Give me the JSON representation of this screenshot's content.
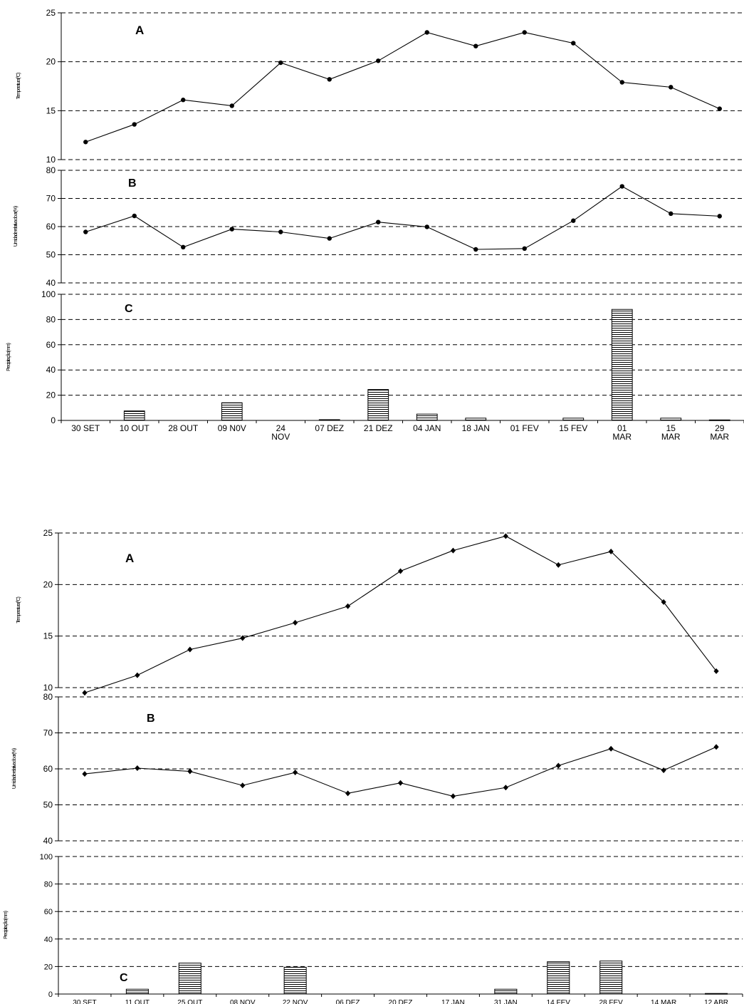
{
  "chart_data": [
    {
      "type": "line",
      "figure": 1,
      "panel_letter": "A",
      "ylabel": "Temperatura(ºC)",
      "ylim": [
        10,
        25
      ],
      "yticks": [
        10,
        15,
        20,
        25
      ],
      "grid": true,
      "series": [
        {
          "values": [
            11.8,
            13.6,
            16.1,
            15.5,
            19.9,
            18.2,
            20.1,
            23.0,
            21.6,
            23.0,
            21.9,
            17.9,
            17.4,
            15.2
          ]
        }
      ]
    },
    {
      "type": "line",
      "figure": 1,
      "panel_letter": "B",
      "ylabel": "Umidade relativa do ar(%)",
      "ylim": [
        40,
        80
      ],
      "yticks": [
        40,
        50,
        60,
        70,
        80
      ],
      "grid": true,
      "series": [
        {
          "values": [
            58.1,
            63.8,
            52.7,
            59.1,
            58.1,
            55.8,
            61.6,
            59.9,
            51.9,
            52.2,
            62.1,
            74.3,
            64.6,
            63.7
          ]
        }
      ]
    },
    {
      "type": "bar",
      "figure": 1,
      "panel_letter": "C",
      "ylabel": "Precipitação(mm)",
      "ylim": [
        0,
        100
      ],
      "yticks": [
        0,
        20,
        40,
        60,
        80,
        100
      ],
      "grid": true,
      "categories": [
        [
          "30 SET"
        ],
        [
          "10 OUT"
        ],
        [
          "28 OUT"
        ],
        [
          "09 N0V"
        ],
        [
          "24",
          "NOV"
        ],
        [
          "07 DEZ"
        ],
        [
          "21 DEZ"
        ],
        [
          "04 JAN"
        ],
        [
          "18 JAN"
        ],
        [
          "01 FEV"
        ],
        [
          "15 FEV"
        ],
        [
          "01",
          "MAR"
        ],
        [
          "15",
          "MAR"
        ],
        [
          "29",
          "MAR"
        ]
      ],
      "values": [
        0,
        7.5,
        0,
        14,
        0,
        0.6,
        24.5,
        5,
        1.8,
        0,
        1.8,
        88,
        1.8,
        0.4
      ]
    },
    {
      "type": "line",
      "figure": 2,
      "panel_letter": "A",
      "ylabel": "Temperatura(ºC)",
      "ylim": [
        10,
        25
      ],
      "yticks": [
        10,
        15,
        20,
        25
      ],
      "grid": true,
      "series": [
        {
          "values": [
            9.5,
            11.2,
            13.7,
            14.8,
            16.3,
            17.9,
            21.3,
            23.3,
            24.7,
            21.9,
            23.2,
            18.3,
            11.6
          ]
        }
      ]
    },
    {
      "type": "line",
      "figure": 2,
      "panel_letter": "B",
      "ylabel": "Umidade relativa do ar(%)",
      "ylim": [
        40,
        80
      ],
      "yticks": [
        40,
        50,
        60,
        70,
        80
      ],
      "grid": true,
      "series": [
        {
          "values": [
            58.6,
            60.2,
            59.3,
            55.4,
            59.0,
            53.2,
            56.1,
            52.4,
            54.8,
            60.9,
            65.6,
            59.6,
            66.1
          ]
        }
      ]
    },
    {
      "type": "bar",
      "figure": 2,
      "panel_letter": "C",
      "ylabel": "Precipitação(mm)",
      "ylim": [
        0,
        100
      ],
      "yticks": [
        0,
        20,
        40,
        60,
        80,
        100
      ],
      "grid": true,
      "categories": [
        [
          "30 SET"
        ],
        [
          "11 OUT"
        ],
        [
          "25 OUT"
        ],
        [
          "08 NOV"
        ],
        [
          "22 NOV"
        ],
        [
          "06 DEZ"
        ],
        [
          "20 DEZ"
        ],
        [
          "17 JAN"
        ],
        [
          "31 JAN"
        ],
        [
          "14 FEV"
        ],
        [
          "28 FEV"
        ],
        [
          "14 MAR"
        ],
        [
          "12 ABR"
        ]
      ],
      "values": [
        0,
        3.5,
        22.5,
        0,
        19.5,
        0,
        0,
        0,
        3.5,
        23.5,
        24,
        0,
        0.4
      ]
    }
  ]
}
